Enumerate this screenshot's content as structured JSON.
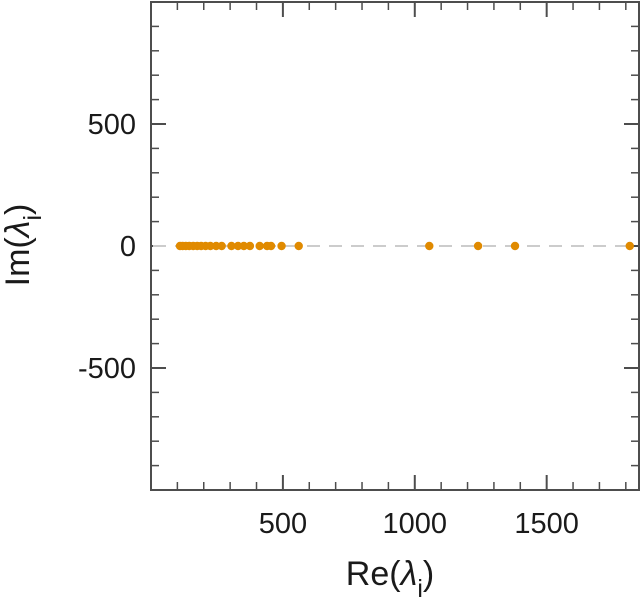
{
  "chart_data": {
    "type": "scatter",
    "title": "",
    "xlabel_parts": {
      "prefix": "Re(",
      "symbol": "λ",
      "subscript": "i",
      "suffix": ")"
    },
    "ylabel_parts": {
      "prefix": "Im(",
      "symbol": "λ",
      "subscript": "i",
      "suffix": ")"
    },
    "xlim": [
      0,
      1850
    ],
    "ylim": [
      -1000,
      1000
    ],
    "x_ticks": [
      500,
      1000,
      1500
    ],
    "x_tick_labels": [
      "500",
      "1000",
      "1500"
    ],
    "x_minor_step": 100,
    "y_ticks": [
      500,
      0,
      -500
    ],
    "y_tick_labels": [
      "500",
      "0",
      "-500"
    ],
    "y_minor_step": 100,
    "grid": false,
    "reference_line": {
      "y": 0,
      "style": "dashed",
      "color": "#cccccc"
    },
    "marker_color": "#e08a00",
    "points": [
      {
        "x": 110,
        "y": 0
      },
      {
        "x": 120,
        "y": 0
      },
      {
        "x": 132,
        "y": 0
      },
      {
        "x": 145,
        "y": 0
      },
      {
        "x": 160,
        "y": 0
      },
      {
        "x": 175,
        "y": 0
      },
      {
        "x": 190,
        "y": 0
      },
      {
        "x": 207,
        "y": 0
      },
      {
        "x": 225,
        "y": 0
      },
      {
        "x": 247,
        "y": 0
      },
      {
        "x": 268,
        "y": 0
      },
      {
        "x": 305,
        "y": 0
      },
      {
        "x": 330,
        "y": 0
      },
      {
        "x": 352,
        "y": 0
      },
      {
        "x": 375,
        "y": 0
      },
      {
        "x": 412,
        "y": 0
      },
      {
        "x": 440,
        "y": 0
      },
      {
        "x": 455,
        "y": 0
      },
      {
        "x": 495,
        "y": 0
      },
      {
        "x": 560,
        "y": 0
      },
      {
        "x": 1055,
        "y": 0
      },
      {
        "x": 1240,
        "y": 0
      },
      {
        "x": 1380,
        "y": 0
      },
      {
        "x": 1815,
        "y": 0
      }
    ]
  }
}
